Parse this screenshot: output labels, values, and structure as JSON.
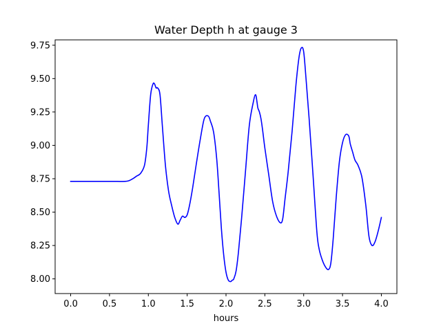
{
  "chart_data": {
    "type": "line",
    "title": "Water Depth h at gauge 3",
    "xlabel": "hours",
    "ylabel": "",
    "xlim": [
      -0.2,
      4.2
    ],
    "ylim": [
      7.89,
      9.79
    ],
    "xticks": [
      0.0,
      0.5,
      1.0,
      1.5,
      2.0,
      2.5,
      3.0,
      3.5,
      4.0
    ],
    "xtick_labels": [
      "0.0",
      "0.5",
      "1.0",
      "1.5",
      "2.0",
      "2.5",
      "3.0",
      "3.5",
      "4.0"
    ],
    "yticks": [
      8.0,
      8.25,
      8.5,
      8.75,
      9.0,
      9.25,
      9.5,
      9.75
    ],
    "ytick_labels": [
      "8.00",
      "8.25",
      "8.50",
      "8.75",
      "9.00",
      "9.25",
      "9.50",
      "9.75"
    ],
    "grid": false,
    "series": [
      {
        "color": "#0000ff",
        "x": [
          0.0,
          0.1,
          0.2,
          0.3,
          0.4,
          0.5,
          0.6,
          0.7,
          0.75,
          0.8,
          0.85,
          0.9,
          0.95,
          0.98,
          1.0,
          1.03,
          1.06,
          1.08,
          1.1,
          1.12,
          1.15,
          1.18,
          1.22,
          1.26,
          1.3,
          1.34,
          1.38,
          1.41,
          1.44,
          1.47,
          1.5,
          1.53,
          1.57,
          1.62,
          1.67,
          1.72,
          1.77,
          1.8,
          1.84,
          1.88,
          1.91,
          1.94,
          1.97,
          2.0,
          2.03,
          2.06,
          2.08,
          2.1,
          2.13,
          2.16,
          2.2,
          2.25,
          2.3,
          2.35,
          2.38,
          2.4,
          2.41,
          2.43,
          2.45,
          2.47,
          2.5,
          2.55,
          2.6,
          2.65,
          2.7,
          2.73,
          2.76,
          2.8,
          2.85,
          2.9,
          2.94,
          2.97,
          3.0,
          3.03,
          3.07,
          3.12,
          3.17,
          3.2,
          3.24,
          3.28,
          3.32,
          3.35,
          3.38,
          3.42,
          3.46,
          3.5,
          3.54,
          3.58,
          3.6,
          3.63,
          3.66,
          3.7,
          3.75,
          3.8,
          3.84,
          3.88,
          3.92,
          3.96,
          4.0
        ],
        "y": [
          8.73,
          8.73,
          8.73,
          8.73,
          8.73,
          8.73,
          8.73,
          8.73,
          8.735,
          8.75,
          8.77,
          8.79,
          8.85,
          8.98,
          9.15,
          9.38,
          9.46,
          9.46,
          9.43,
          9.43,
          9.38,
          9.15,
          8.85,
          8.66,
          8.55,
          8.46,
          8.41,
          8.44,
          8.47,
          8.46,
          8.48,
          8.55,
          8.68,
          8.87,
          9.05,
          9.2,
          9.22,
          9.18,
          9.1,
          8.9,
          8.65,
          8.38,
          8.18,
          8.05,
          7.99,
          7.98,
          7.99,
          8.0,
          8.06,
          8.2,
          8.45,
          8.8,
          9.15,
          9.32,
          9.38,
          9.32,
          9.28,
          9.25,
          9.2,
          9.12,
          8.98,
          8.78,
          8.58,
          8.47,
          8.42,
          8.45,
          8.6,
          8.8,
          9.1,
          9.45,
          9.66,
          9.73,
          9.7,
          9.5,
          9.2,
          8.78,
          8.35,
          8.22,
          8.14,
          8.09,
          8.07,
          8.12,
          8.3,
          8.62,
          8.88,
          9.02,
          9.08,
          9.07,
          9.01,
          8.95,
          8.89,
          8.85,
          8.76,
          8.55,
          8.32,
          8.25,
          8.28,
          8.36,
          8.46
        ]
      }
    ]
  }
}
